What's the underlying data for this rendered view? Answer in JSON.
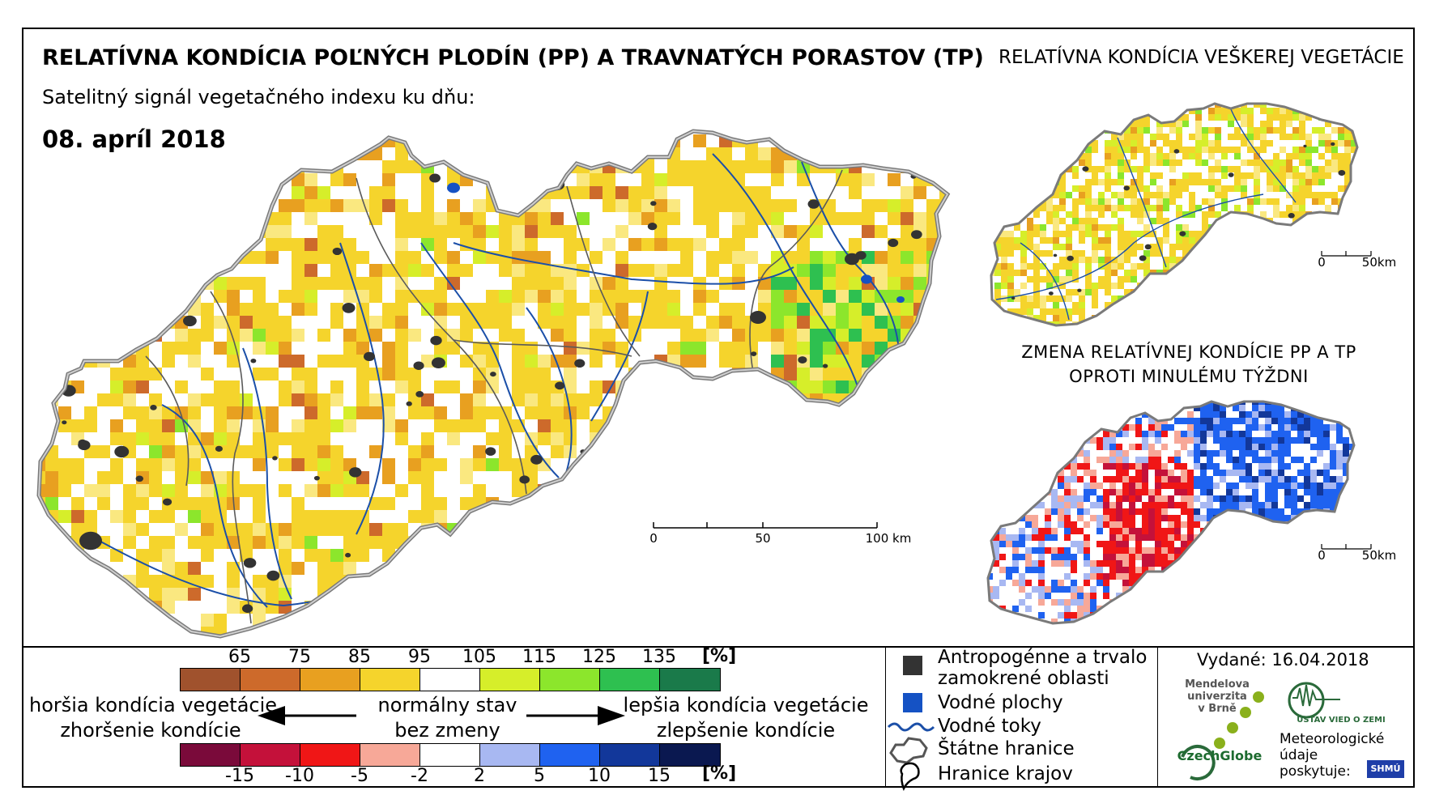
{
  "titles": {
    "main": "RELATÍVNA KONDÍCIA POĽNÝCH PLODÍN (PP) A TRAVNATÝCH PORASTOV (TP)",
    "right": "RELATÍVNA KONDÍCIA VEŠKEREJ VEGETÁCIE",
    "subtitle": "Satelitný signál vegetačného indexu ku dňu:",
    "date": "08. apríl 2018",
    "change_line1": "ZMENA RELATÍVNEJ KONDÍCIE PP A TP",
    "change_line2": "OPROTI MINULÉMU TÝŽDNI"
  },
  "scalebars": {
    "main": [
      "0",
      "50",
      "100 km"
    ],
    "small_top": [
      "0",
      "50km"
    ],
    "small_bottom": [
      "0",
      "50km"
    ]
  },
  "legend_condition": {
    "ticks": [
      "65",
      "75",
      "85",
      "95",
      "105",
      "115",
      "125",
      "135"
    ],
    "unit": "[%]",
    "colors": [
      "#a0522d",
      "#cd6a2b",
      "#e8a020",
      "#f5d42c",
      "#ffffff",
      "#d6ee2a",
      "#8ce62c",
      "#2ec050",
      "#1a7a4a"
    ]
  },
  "legend_change": {
    "ticks": [
      "-15",
      "-10",
      "-5",
      "-2",
      "2",
      "5",
      "10",
      "15"
    ],
    "unit": "[%]",
    "colors": [
      "#7a0a3a",
      "#c4113a",
      "#f01616",
      "#f7a898",
      "#ffffff",
      "#a8b8f2",
      "#1f62f0",
      "#12379a",
      "#0a1850"
    ]
  },
  "legend_text": {
    "worse1": "horšia kondícia vegetácie",
    "worse2": "zhoršenie kondície",
    "normal1": "normálny stav",
    "normal2": "bez zmeny",
    "better1": "lepšia kondícia vegetácie",
    "better2": "zlepšenie kondície"
  },
  "symbols": {
    "anthro1": "Antropogénne a trvalo",
    "anthro2": "zamokrené oblasti",
    "water_bodies": "Vodné plochy",
    "rivers": "Vodné toky",
    "state_border": "Štátne hranice",
    "region_border": "Hranice krajov"
  },
  "issued": "Vydané: 16.04.2018",
  "logos": {
    "mendel1": "Mendelova",
    "mendel2": "univerzita",
    "mendel3": "v Brně",
    "czechglobe": "CzechGlobe",
    "uvgz": "ÚSTAV VIED O ZEMI",
    "meteo1": "Meteorologické",
    "meteo2": "údaje",
    "meteo3": "poskytuje:",
    "shmu": "SHMÚ"
  },
  "colors": {
    "river": "#1b4fa8",
    "anthropogenic": "#333333",
    "water_body": "#1552c4",
    "border": "#555555"
  }
}
